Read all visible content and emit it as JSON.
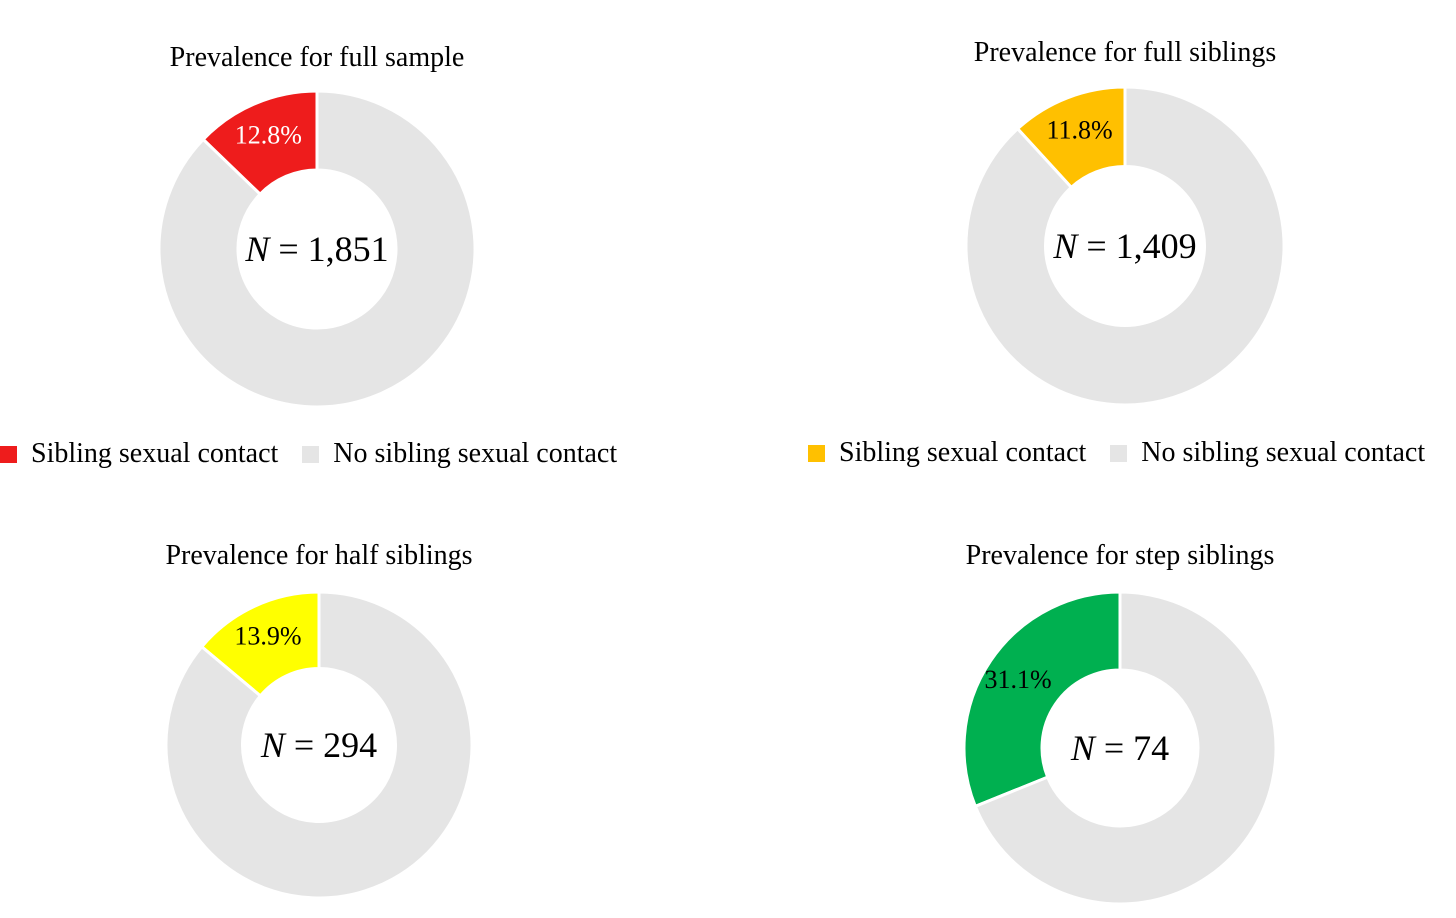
{
  "chart_data": [
    {
      "type": "pie",
      "title": "Prevalence for full sample",
      "center_label": {
        "var": "N",
        "eq": " = ",
        "value": "1,851"
      },
      "slices": [
        {
          "label": "Sibling sexual contact",
          "value": 12.8,
          "data_label": "12.8%",
          "color": "#ee1c1c",
          "label_color": "#ffffff"
        },
        {
          "label": "No sibling sexual contact",
          "value": 87.2,
          "color": "#e5e5e5"
        }
      ],
      "legend": {
        "placement": "bottom",
        "entries": [
          "Sibling sexual contact",
          "No sibling sexual contact"
        ]
      }
    },
    {
      "type": "pie",
      "title": "Prevalence for full siblings",
      "center_label": {
        "var": "N",
        "eq": " = ",
        "value": "1,409"
      },
      "slices": [
        {
          "label": "Sibling sexual contact",
          "value": 11.8,
          "data_label": "11.8%",
          "color": "#ffc000",
          "label_color": "#000000"
        },
        {
          "label": "No sibling sexual contact",
          "value": 88.2,
          "color": "#e5e5e5"
        }
      ],
      "legend": {
        "placement": "bottom",
        "entries": [
          "Sibling sexual contact",
          "No sibling sexual contact"
        ]
      }
    },
    {
      "type": "pie",
      "title": "Prevalence for half siblings",
      "center_label": {
        "var": "N",
        "eq": " = ",
        "value": "294"
      },
      "slices": [
        {
          "label": "Sibling sexual contact",
          "value": 13.9,
          "data_label": "13.9%",
          "color": "#ffff00",
          "label_color": "#000000"
        },
        {
          "label": "No sibling sexual contact",
          "value": 86.1,
          "color": "#e5e5e5"
        }
      ]
    },
    {
      "type": "pie",
      "title": "Prevalence for step siblings",
      "center_label": {
        "var": "N",
        "eq": " = ",
        "value": "74"
      },
      "slices": [
        {
          "label": "Sibling sexual contact",
          "value": 31.1,
          "data_label": "31.1%",
          "color": "#00b050",
          "label_color": "#000000"
        },
        {
          "label": "No sibling sexual contact",
          "value": 68.9,
          "color": "#e5e5e5"
        }
      ]
    }
  ]
}
